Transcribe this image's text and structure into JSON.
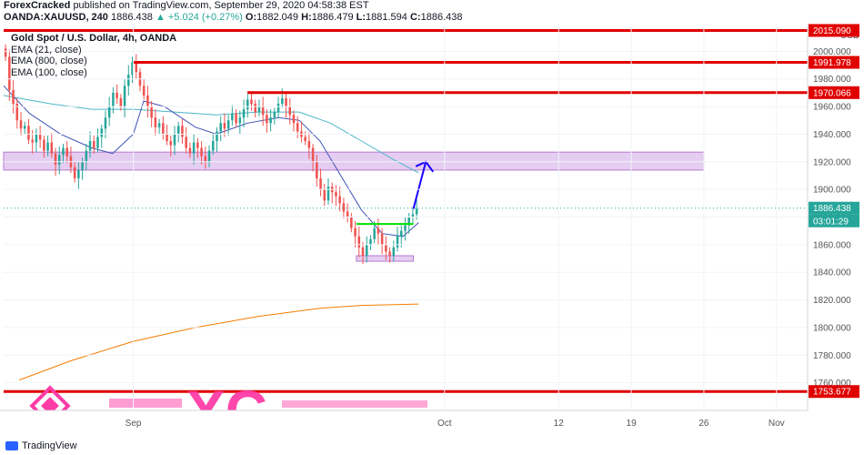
{
  "header": {
    "publisher": "ForexCracked",
    "published_text": "published on TradingView.com, September 29, 2020 04:58:38 EST",
    "symbol": "OANDA:XAUUSD, 240",
    "last": "1886.438",
    "change": "▲ +5.024 (+0.27%)",
    "o_label": "O:",
    "o": "1882.049",
    "h_label": "H:",
    "h": "1886.479",
    "l_label": "L:",
    "l": "1881.594",
    "c_label": "C:",
    "c": "1886.438"
  },
  "legend": {
    "title": "Gold Spot / U.S. Dollar, 4h, OANDA",
    "ema21": "EMA (21, close)",
    "ema800": "EMA (800, close)",
    "ema100": "EMA (100, close)"
  },
  "footer": {
    "brand": "TradingView"
  },
  "watermark": {
    "text": "XC"
  },
  "chart_data": {
    "type": "candlestick",
    "currency": "USD",
    "y_range": [
      1740,
      2020
    ],
    "y_ticks": [
      {
        "v": 1760,
        "t": "1760.000"
      },
      {
        "v": 1780,
        "t": "1780.000"
      },
      {
        "v": 1800,
        "t": "1800.000"
      },
      {
        "v": 1820,
        "t": "1820.000"
      },
      {
        "v": 1840,
        "t": "1840.000"
      },
      {
        "v": 1860,
        "t": "1860.000"
      },
      {
        "v": 1880,
        "t": "1880.000"
      },
      {
        "v": 1900,
        "t": "1900.000"
      },
      {
        "v": 1920,
        "t": "1920.000"
      },
      {
        "v": 1940,
        "t": "1940.000"
      },
      {
        "v": 1960,
        "t": "1960.000"
      },
      {
        "v": 1980,
        "t": "1980.000"
      },
      {
        "v": 2000,
        "t": "2000.000"
      }
    ],
    "x_ticks": [
      {
        "d": 0,
        "t": "Sep"
      },
      {
        "d": 30,
        "t": "Oct"
      },
      {
        "d": 41,
        "t": "12"
      },
      {
        "d": 48,
        "t": "19"
      },
      {
        "d": 55,
        "t": "26"
      },
      {
        "d": 62,
        "t": "Nov"
      }
    ],
    "x_range_days": [
      -12.5,
      65
    ],
    "price_labels": [
      {
        "v": 2015.09,
        "t": "2015.090",
        "color": "#e00000"
      },
      {
        "v": 1991.978,
        "t": "1991.978",
        "color": "#e00000"
      },
      {
        "v": 1970.066,
        "t": "1970.066",
        "color": "#e00000"
      },
      {
        "v": 1886.438,
        "t": "1886.438",
        "color": "#26a69a"
      },
      {
        "v": 1753.677,
        "t": "1753.677",
        "color": "#e00000"
      }
    ],
    "countdown": "03:01:29",
    "horizontal_lines": [
      {
        "v": 2015.09,
        "from_day": -12.5,
        "to_day": 65,
        "color": "#e00000"
      },
      {
        "v": 1991.978,
        "from_day": 0,
        "to_day": 65,
        "color": "#e00000"
      },
      {
        "v": 1970.066,
        "from_day": 11,
        "to_day": 65,
        "color": "#e00000"
      },
      {
        "v": 1753.677,
        "from_day": -12.5,
        "to_day": 65,
        "color": "#e00000"
      }
    ],
    "zones": [
      {
        "from_day": -12.5,
        "to_day": 55,
        "low": 1914,
        "high": 1927,
        "color": "#e1c4ee",
        "stroke": "#b57bd0"
      },
      {
        "from_day": 21.5,
        "to_day": 27,
        "low": 1848,
        "high": 1852,
        "color": "#e1c4ee",
        "stroke": "#b57bd0"
      }
    ],
    "breakout_line": {
      "from_day": 21.5,
      "to_day": 27,
      "v": 1875,
      "color": "#00e000"
    },
    "arrow": {
      "from_day": 27,
      "from_v": 1886,
      "to_day": 28.2,
      "to_v": 1920,
      "color": "#1a00ff"
    },
    "candles_close": [
      1996,
      1972,
      1962,
      1950,
      1944,
      1946,
      1936,
      1934,
      1940,
      1936,
      1928,
      1934,
      1926,
      1918,
      1925,
      1930,
      1924,
      1916,
      1908,
      1914,
      1920,
      1928,
      1935,
      1930,
      1938,
      1944,
      1952,
      1960,
      1970,
      1966,
      1960,
      1975,
      1983,
      1992,
      1985,
      1975,
      1968,
      1960,
      1952,
      1945,
      1948,
      1940,
      1935,
      1932,
      1940,
      1946,
      1938,
      1930,
      1926,
      1934,
      1930,
      1924,
      1920,
      1928,
      1935,
      1942,
      1948,
      1944,
      1950,
      1955,
      1948,
      1952,
      1958,
      1965,
      1962,
      1956,
      1960,
      1954,
      1948,
      1952,
      1956,
      1962,
      1966,
      1960,
      1954,
      1948,
      1942,
      1938,
      1935,
      1930,
      1920,
      1908,
      1900,
      1892,
      1902,
      1898,
      1895,
      1890,
      1884,
      1880,
      1872,
      1866,
      1858,
      1852,
      1860,
      1864,
      1872,
      1868,
      1860,
      1855,
      1852,
      1858,
      1866,
      1870,
      1874,
      1880,
      1882,
      1886
    ],
    "ema21": [
      {
        "d": -12.5,
        "v": 1975
      },
      {
        "d": -10,
        "v": 1955
      },
      {
        "d": -7,
        "v": 1940
      },
      {
        "d": -4,
        "v": 1930
      },
      {
        "d": -2,
        "v": 1926
      },
      {
        "d": 0,
        "v": 1940
      },
      {
        "d": 1,
        "v": 1964
      },
      {
        "d": 3,
        "v": 1960
      },
      {
        "d": 6,
        "v": 1945
      },
      {
        "d": 8,
        "v": 1940
      },
      {
        "d": 11,
        "v": 1948
      },
      {
        "d": 14,
        "v": 1952
      },
      {
        "d": 16,
        "v": 1950
      },
      {
        "d": 18,
        "v": 1935
      },
      {
        "d": 20,
        "v": 1910
      },
      {
        "d": 22,
        "v": 1885
      },
      {
        "d": 24,
        "v": 1868
      },
      {
        "d": 26,
        "v": 1866
      },
      {
        "d": 27.5,
        "v": 1876
      }
    ],
    "ema100": [
      {
        "d": -12.5,
        "v": 1968
      },
      {
        "d": -8,
        "v": 1962
      },
      {
        "d": -4,
        "v": 1958
      },
      {
        "d": 0,
        "v": 1958
      },
      {
        "d": 4,
        "v": 1956
      },
      {
        "d": 8,
        "v": 1954
      },
      {
        "d": 12,
        "v": 1956
      },
      {
        "d": 16,
        "v": 1956
      },
      {
        "d": 19,
        "v": 1948
      },
      {
        "d": 22,
        "v": 1935
      },
      {
        "d": 25,
        "v": 1922
      },
      {
        "d": 27.5,
        "v": 1912
      }
    ],
    "ema800": [
      {
        "d": -11,
        "v": 1762
      },
      {
        "d": -6,
        "v": 1776
      },
      {
        "d": 0,
        "v": 1790
      },
      {
        "d": 6,
        "v": 1800
      },
      {
        "d": 12,
        "v": 1808
      },
      {
        "d": 18,
        "v": 1814
      },
      {
        "d": 22,
        "v": 1816
      },
      {
        "d": 27.5,
        "v": 1817
      }
    ]
  }
}
